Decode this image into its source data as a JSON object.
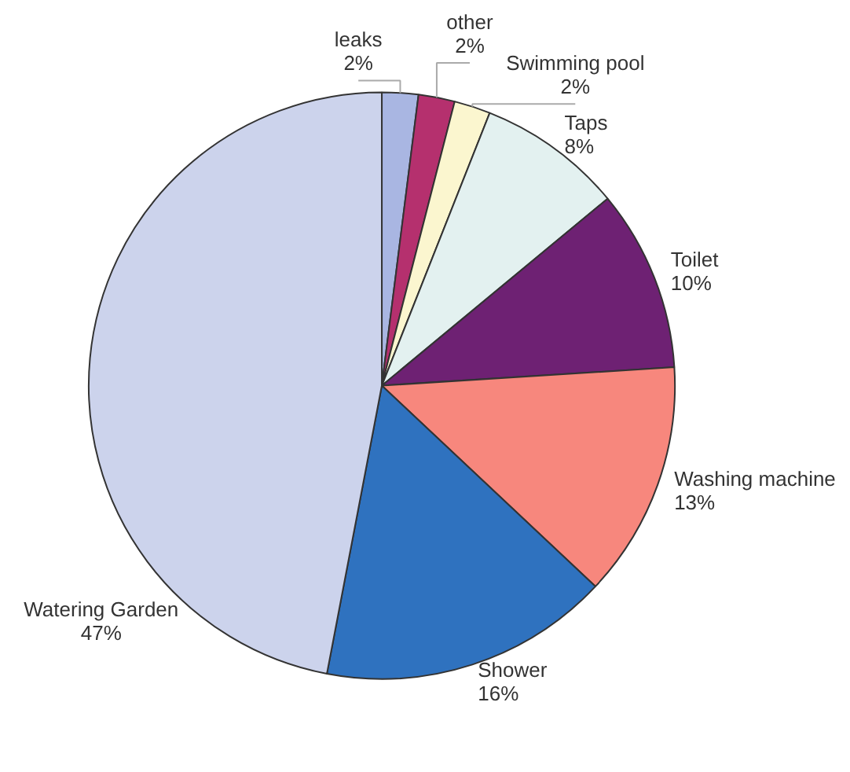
{
  "chart_data": {
    "type": "pie",
    "categories": [
      "leaks",
      "other",
      "Swimming pool",
      "Taps",
      "Toilet",
      "Washing machine",
      "Shower",
      "Watering Garden"
    ],
    "values": [
      2,
      2,
      2,
      8,
      10,
      13,
      16,
      47
    ],
    "value_labels": [
      "2%",
      "2%",
      "2%",
      "8%",
      "10%",
      "13%",
      "16%",
      "47%"
    ],
    "colors": [
      "#a9b6e2",
      "#b5306e",
      "#fbf6cf",
      "#e3f1f0",
      "#6e2173",
      "#f7877d",
      "#2f72bf",
      "#ccd3ec"
    ],
    "legend": false
  }
}
